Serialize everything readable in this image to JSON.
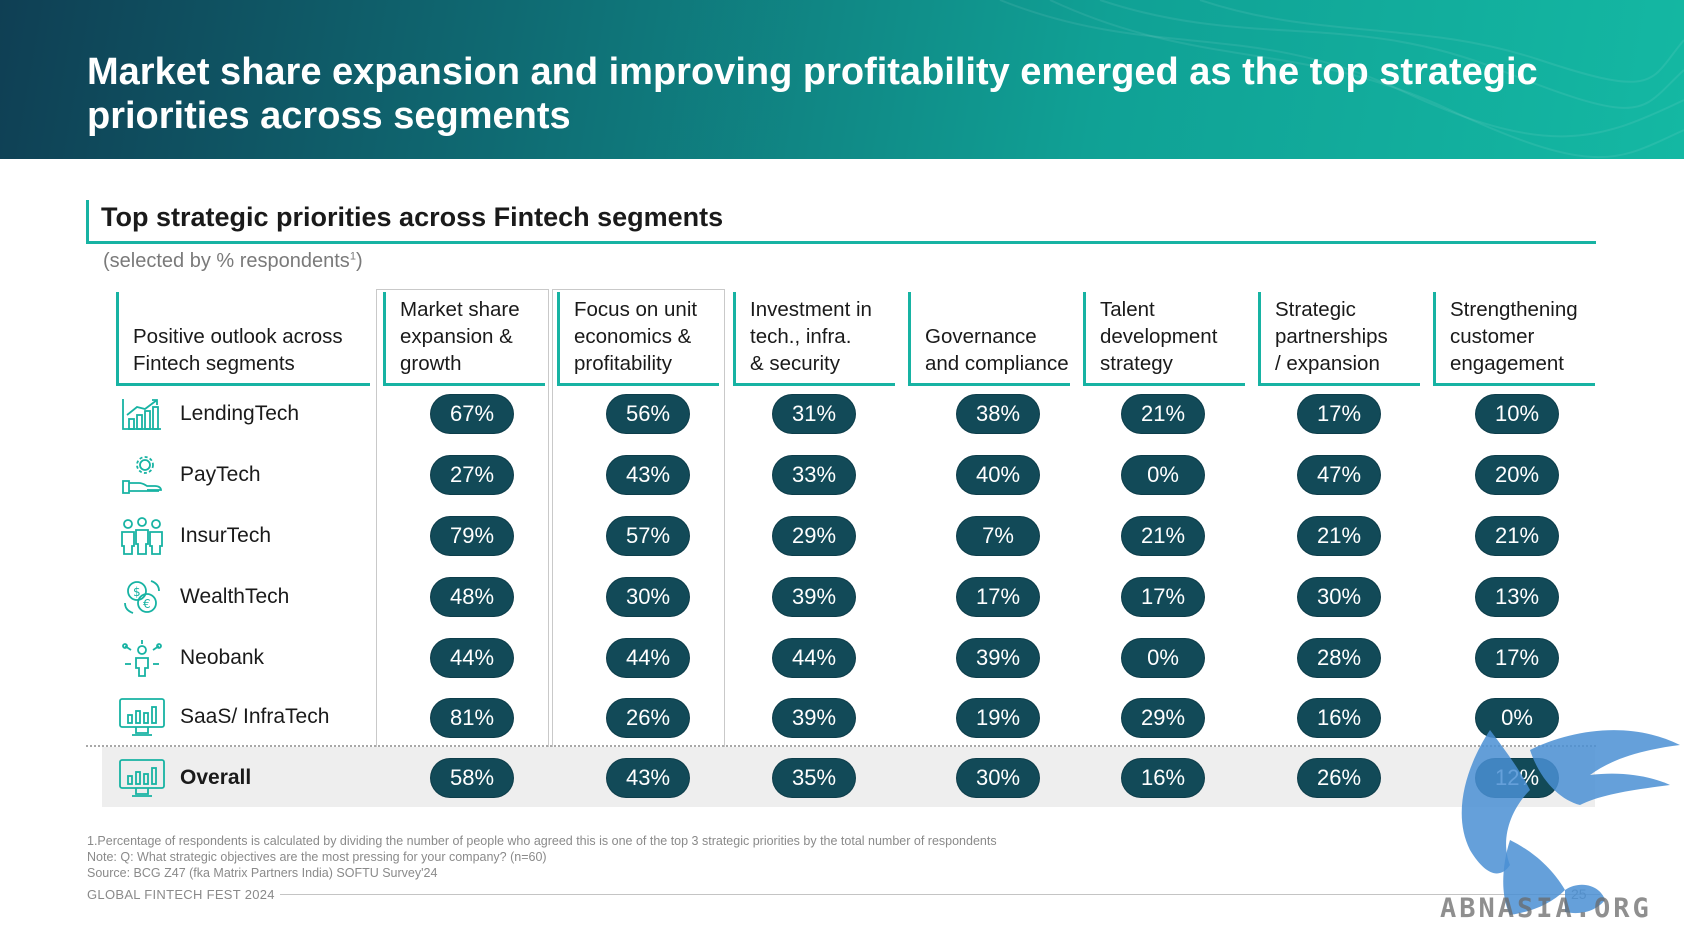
{
  "slide": {
    "title": "Market share expansion and improving profitability emerged as the top strategic priorities across segments",
    "section_title": "Top strategic priorities across Fintech segments",
    "subtitle_prefix": "(selected by % respondents",
    "subtitle_sup": "1",
    "subtitle_suffix": ")",
    "row_header": "Positive outlook across\nFintech segments",
    "accent_color": "#17b3a3",
    "pill_color": "#124a58",
    "page_number": "25",
    "brand": "GLOBAL FINTECH FEST 2024",
    "watermark": "ABNASIA.ORG"
  },
  "columns": [
    "Market share\nexpansion &\ngrowth",
    "Focus on unit\neconomics &\nprofitability",
    "Investment in\ntech., infra.\n& security",
    "Governance\nand compliance",
    "Talent\ndevelopment\nstrategy",
    "Strategic\npartnerships\n/ expansion",
    "Strengthening\ncustomer\nengagement"
  ],
  "rows": [
    {
      "segment": "LendingTech",
      "icon": "growth-chart-icon",
      "values": [
        "67%",
        "56%",
        "31%",
        "38%",
        "21%",
        "17%",
        "10%"
      ]
    },
    {
      "segment": "PayTech",
      "icon": "hand-gear-icon",
      "values": [
        "27%",
        "43%",
        "33%",
        "40%",
        "0%",
        "47%",
        "20%"
      ]
    },
    {
      "segment": "InsurTech",
      "icon": "people-group-icon",
      "values": [
        "79%",
        "57%",
        "29%",
        "7%",
        "21%",
        "21%",
        "21%"
      ]
    },
    {
      "segment": "WealthTech",
      "icon": "currency-exchange-icon",
      "values": [
        "48%",
        "30%",
        "39%",
        "17%",
        "17%",
        "30%",
        "13%"
      ]
    },
    {
      "segment": "Neobank",
      "icon": "person-network-icon",
      "values": [
        "44%",
        "44%",
        "44%",
        "39%",
        "0%",
        "28%",
        "17%"
      ]
    },
    {
      "segment": "SaaS/ InfraTech",
      "icon": "monitor-chart-icon",
      "values": [
        "81%",
        "26%",
        "39%",
        "19%",
        "29%",
        "16%",
        "0%"
      ]
    },
    {
      "segment": "Overall",
      "icon": "monitor-chart-icon",
      "values": [
        "58%",
        "43%",
        "35%",
        "30%",
        "16%",
        "26%",
        "12%"
      ]
    }
  ],
  "footnotes": [
    "1.Percentage of respondents is calculated by dividing the number of people who agreed this is one of the top 3 strategic priorities by the total number of respondents",
    "Note: Q:  What strategic objectives are the most pressing for your company? (n=60)",
    "Source: BCG Z47 (fka Matrix Partners India) SOFTU Survey'24"
  ]
}
